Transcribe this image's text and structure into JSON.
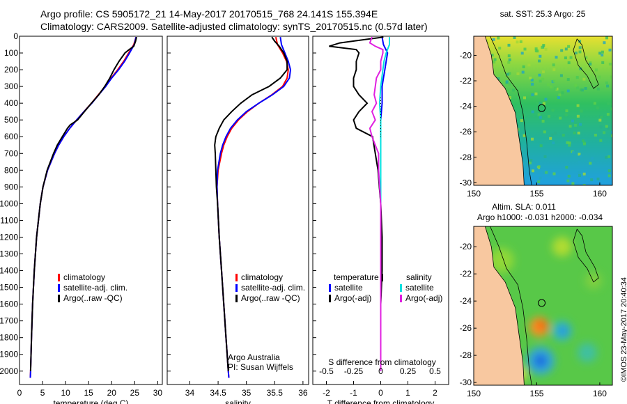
{
  "title_line1": "Argo profile: CS 5905172_21 14-May-2017 20170515_768 24.141S 155.394E",
  "title_line2": "Climatology: CARS2009. Satellite-adjusted climatology: synTS_20170515.nc (0.57d later)",
  "credit": "©IMOS 23-May-2017 20:40:34",
  "colors": {
    "climatology": "#ff0000",
    "satellite": "#0000ff",
    "argo": "#000000",
    "satellite_s": "#00e0e0",
    "argo_s": "#e020e0",
    "land": "#f8c8a0"
  },
  "chart_data": [
    {
      "type": "line",
      "id": "temperature",
      "xlabel": "temperature (deg C)",
      "xlim": [
        0,
        31
      ],
      "xticks": [
        "0",
        "5",
        "10",
        "15",
        "20",
        "25",
        "30"
      ],
      "ylim": [
        0,
        2080
      ],
      "yticks": [
        "0",
        "100",
        "200",
        "300",
        "400",
        "500",
        "600",
        "700",
        "800",
        "900",
        "1000",
        "1100",
        "1200",
        "1300",
        "1400",
        "1500",
        "1600",
        "1700",
        "1800",
        "1900",
        "2000"
      ],
      "legend": [
        "climatology",
        "satellite-adj. clim.",
        "Argo(..raw -QC)"
      ],
      "series": [
        {
          "name": "climatology",
          "color": "#ff0000",
          "depth": [
            5,
            50,
            100,
            150,
            200,
            250,
            300,
            350,
            400,
            450,
            500,
            550,
            600,
            650,
            700,
            800,
            900,
            1000,
            1200,
            1400,
            1600,
            1800,
            2000,
            2040
          ],
          "values": [
            25.3,
            24.8,
            23.7,
            22.6,
            21.3,
            19.9,
            18.6,
            17.1,
            15.6,
            14.0,
            12.4,
            10.9,
            9.6,
            8.5,
            7.6,
            6.1,
            5.1,
            4.5,
            3.7,
            3.2,
            2.85,
            2.6,
            2.4,
            2.35
          ]
        },
        {
          "name": "satellite-adj. clim.",
          "color": "#0000ff",
          "depth": [
            5,
            50,
            100,
            150,
            200,
            250,
            300,
            350,
            400,
            450,
            500,
            550,
            600,
            650,
            700,
            800,
            900,
            1000,
            1200,
            1400,
            1600,
            1800,
            2000,
            2040
          ],
          "values": [
            25.3,
            24.9,
            23.9,
            22.8,
            21.5,
            20.0,
            18.7,
            17.2,
            15.7,
            14.0,
            12.4,
            10.9,
            9.6,
            8.5,
            7.6,
            6.1,
            5.1,
            4.5,
            3.7,
            3.2,
            2.85,
            2.6,
            2.4,
            2.35
          ]
        },
        {
          "name": "Argo",
          "color": "#000000",
          "depth": [
            5,
            30,
            60,
            80,
            100,
            150,
            200,
            250,
            300,
            350,
            400,
            450,
            500,
            530,
            550,
            600,
            650,
            700,
            800,
            900,
            1000,
            1200,
            1400,
            1600,
            1800,
            2000
          ],
          "values": [
            25.4,
            25.2,
            24.8,
            23.8,
            22.9,
            21.6,
            20.5,
            19.6,
            18.5,
            17.2,
            15.6,
            14.1,
            12.6,
            11.0,
            10.4,
            9.3,
            8.2,
            7.4,
            6.0,
            5.1,
            4.5,
            3.7,
            3.2,
            2.85,
            2.6,
            2.4
          ]
        }
      ]
    },
    {
      "type": "line",
      "id": "salinity",
      "xlabel": "salinity",
      "xlim": [
        33.6,
        36.1
      ],
      "xticks": [
        "34",
        "34.5",
        "35",
        "35.5",
        "36"
      ],
      "ylim": [
        0,
        2080
      ],
      "legend": [
        "climatology",
        "satellite-adj. clim.",
        "Argo(..raw -QC)"
      ],
      "annotation": [
        "Argo Australia",
        "PI: Susan Wijffels"
      ],
      "series": [
        {
          "name": "climatology",
          "color": "#ff0000",
          "depth": [
            5,
            50,
            100,
            150,
            200,
            250,
            300,
            350,
            400,
            450,
            500,
            550,
            600,
            650,
            700,
            800,
            900,
            1000,
            1200,
            1400,
            1600,
            1800,
            2000,
            2040
          ],
          "values": [
            35.52,
            35.55,
            35.64,
            35.71,
            35.74,
            35.72,
            35.64,
            35.45,
            35.22,
            35.02,
            34.86,
            34.74,
            34.66,
            34.6,
            34.56,
            34.5,
            34.48,
            34.49,
            34.52,
            34.56,
            34.6,
            34.64,
            34.68,
            34.69
          ]
        },
        {
          "name": "satellite-adj. clim.",
          "color": "#0000ff",
          "depth": [
            5,
            50,
            100,
            150,
            200,
            250,
            300,
            350,
            400,
            450,
            500,
            550,
            600,
            650,
            700,
            800,
            900,
            1000,
            1200,
            1400,
            1600,
            1800,
            2000,
            2040
          ],
          "values": [
            35.6,
            35.62,
            35.68,
            35.74,
            35.78,
            35.76,
            35.66,
            35.46,
            35.22,
            35.0,
            34.84,
            34.72,
            34.64,
            34.58,
            34.54,
            34.49,
            34.48,
            34.49,
            34.52,
            34.56,
            34.6,
            34.64,
            34.68,
            34.69
          ]
        },
        {
          "name": "Argo",
          "color": "#000000",
          "depth": [
            5,
            30,
            60,
            100,
            150,
            200,
            250,
            300,
            350,
            400,
            450,
            500,
            550,
            600,
            650,
            700,
            800,
            900,
            1000,
            1200,
            1400,
            1600,
            1800,
            2000
          ],
          "values": [
            35.45,
            35.5,
            35.58,
            35.66,
            35.72,
            35.72,
            35.6,
            35.4,
            35.1,
            34.9,
            34.74,
            34.6,
            34.52,
            34.46,
            34.44,
            34.45,
            34.46,
            34.47,
            34.49,
            34.52,
            34.56,
            34.6,
            34.64,
            34.68
          ]
        }
      ]
    },
    {
      "type": "line",
      "id": "difference",
      "xlabel_top": "S difference from climatology",
      "xlabel": "T difference from climatology",
      "xlim": [
        -2.5,
        2.5
      ],
      "xticks": [
        "-2",
        "-1",
        "0",
        "1",
        "2"
      ],
      "sticks": [
        "-0.5",
        "-0.25",
        "0",
        "0.25",
        "0.5"
      ],
      "ylim": [
        0,
        2080
      ],
      "legend_t": [
        "temperature",
        "satellite",
        "Argo(-adj)"
      ],
      "legend_s": [
        "salinity",
        "satellite",
        "Argo(-adj)"
      ],
      "series": [
        {
          "name": "T satellite",
          "color": "#0000ff",
          "depth": [
            5,
            50,
            100,
            150,
            200,
            250,
            300,
            400,
            500,
            600,
            800,
            1000,
            1500,
            2000
          ],
          "values": [
            0.05,
            0.1,
            0.25,
            0.2,
            0.15,
            0.1,
            0.05,
            0.05,
            0,
            0,
            0,
            0,
            0,
            0
          ]
        },
        {
          "name": "T Argo",
          "color": "#000000",
          "depth": [
            5,
            40,
            60,
            80,
            100,
            150,
            200,
            250,
            300,
            350,
            400,
            450,
            500,
            550,
            600,
            700,
            800,
            900,
            1000,
            1200,
            1400,
            1600,
            1800,
            2000
          ],
          "values": [
            0.1,
            -1.5,
            -1.9,
            -0.9,
            -0.8,
            -0.9,
            -0.9,
            -1.0,
            -1.0,
            -0.8,
            -0.5,
            -0.8,
            -1.0,
            -0.9,
            -0.3,
            -0.2,
            -0.1,
            -0.05,
            0,
            0.05,
            0.05,
            0,
            0,
            0
          ]
        },
        {
          "name": "S satellite",
          "color": "#00e0e0",
          "depth": [
            5,
            50,
            100,
            150,
            200,
            250,
            300,
            400,
            500,
            600,
            800,
            1000,
            1500,
            2000
          ],
          "values": [
            0.08,
            0.08,
            0.05,
            0.03,
            0.02,
            0.01,
            0,
            -0.01,
            0,
            0,
            0,
            0,
            0,
            0
          ]
        },
        {
          "name": "S Argo",
          "color": "#e020e0",
          "depth": [
            5,
            40,
            60,
            80,
            100,
            150,
            200,
            250,
            300,
            350,
            400,
            450,
            500,
            550,
            600,
            650,
            700,
            800,
            1000,
            1500,
            2000
          ],
          "values": [
            -0.08,
            -0.1,
            -0.05,
            0.02,
            0.02,
            0.0,
            0.0,
            -0.04,
            -0.05,
            -0.06,
            -0.04,
            -0.08,
            -0.05,
            -0.1,
            -0.08,
            -0.05,
            -0.02,
            -0.02,
            0,
            0,
            0
          ]
        }
      ]
    },
    {
      "type": "heatmap",
      "id": "sst_map",
      "title": "sat. SST: 25.3 Argo: 25",
      "xticks": [
        "150",
        "155",
        "160"
      ],
      "yticks": [
        "-20",
        "-22",
        "-24",
        "-26",
        "-28",
        "-30"
      ],
      "xlim": [
        150,
        161
      ],
      "ylim": [
        -30.2,
        -18.5
      ],
      "float_position": [
        155.394,
        -24.141
      ]
    },
    {
      "type": "heatmap",
      "id": "sla_map",
      "title_line1": "Altim. SLA: 0.011",
      "title_line2": "Argo h1000: -0.031 h2000: -0.034",
      "xticks": [
        "150",
        "155",
        "160"
      ],
      "yticks": [
        "-20",
        "-22",
        "-24",
        "-26",
        "-28",
        "-30"
      ],
      "xlim": [
        150,
        161
      ],
      "ylim": [
        -30.2,
        -18.5
      ],
      "float_position": [
        155.394,
        -24.141
      ]
    }
  ]
}
